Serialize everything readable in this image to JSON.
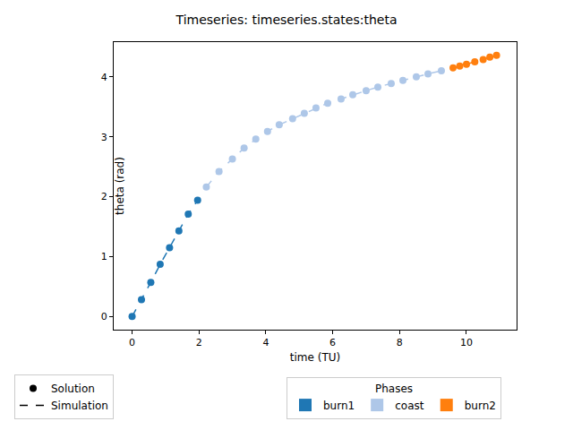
{
  "chart_data": {
    "type": "scatter",
    "title": "Timeseries: timeseries.states:theta",
    "x_label": "time (TU)",
    "y_label": "theta (rad)",
    "xlim": [
      -0.55,
      11.5
    ],
    "xticks": [
      0,
      2,
      4,
      6,
      8,
      10
    ],
    "ylim": [
      -0.22,
      4.58
    ],
    "yticks": [
      0,
      1,
      2,
      3,
      4
    ],
    "grid": false,
    "legend_title": "Phases",
    "styles": [
      {
        "name": "Solution",
        "marker": "circle"
      },
      {
        "name": "Simulation",
        "line_style": "dashed"
      }
    ],
    "series": [
      {
        "name": "burn1",
        "color": "#1f77b4",
        "x": [
          0,
          0.28,
          0.56,
          0.84,
          1.12,
          1.4,
          1.68,
          1.96
        ],
        "values": [
          0,
          0.28,
          0.57,
          0.87,
          1.15,
          1.43,
          1.71,
          1.94
        ]
      },
      {
        "name": "coast",
        "color": "#aec7e8",
        "x": [
          2.22,
          2.6,
          3.0,
          3.35,
          3.7,
          4.05,
          4.4,
          4.8,
          5.15,
          5.5,
          5.85,
          6.25,
          6.6,
          7.0,
          7.35,
          7.75,
          8.1,
          8.5,
          8.85,
          9.25
        ],
        "values": [
          2.16,
          2.42,
          2.63,
          2.81,
          2.96,
          3.09,
          3.2,
          3.3,
          3.39,
          3.48,
          3.56,
          3.63,
          3.7,
          3.77,
          3.83,
          3.89,
          3.94,
          4.0,
          4.05,
          4.1
        ]
      },
      {
        "name": "burn2",
        "color": "#ff7f0e",
        "x": [
          9.6,
          9.8,
          10.0,
          10.25,
          10.5,
          10.7,
          10.9
        ],
        "values": [
          4.15,
          4.18,
          4.21,
          4.25,
          4.29,
          4.33,
          4.36
        ]
      }
    ]
  }
}
